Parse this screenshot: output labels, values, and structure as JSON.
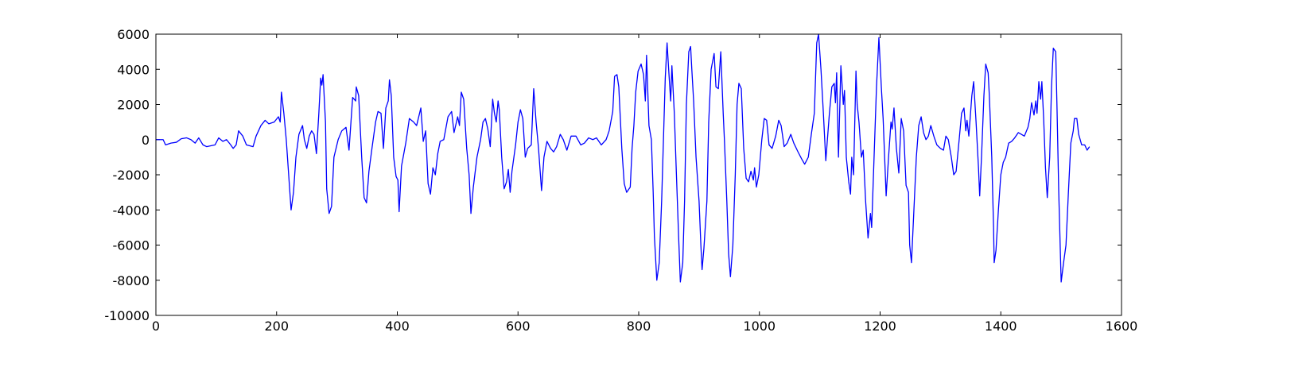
{
  "chart_data": {
    "type": "line",
    "color": "#0000ff",
    "xlim": [
      0,
      1600
    ],
    "xticks": [
      0,
      200,
      400,
      600,
      800,
      1000,
      1200,
      1400,
      1600
    ],
    "ylim": [
      -10000,
      6000
    ],
    "yticks": [
      -10000,
      -8000,
      -6000,
      -4000,
      -2000,
      0,
      2000,
      4000,
      6000
    ],
    "x": [
      0,
      12,
      16,
      25,
      34,
      42,
      51,
      58,
      65,
      71,
      78,
      84,
      98,
      104,
      111,
      117,
      124,
      128,
      133,
      137,
      144,
      150,
      161,
      166,
      174,
      181,
      187,
      196,
      203,
      206,
      208,
      212,
      216,
      220,
      224,
      228,
      232,
      237,
      243,
      246,
      250,
      254,
      258,
      262,
      266,
      270,
      273,
      275,
      277,
      281,
      283,
      287,
      291,
      295,
      302,
      308,
      315,
      320,
      326,
      331,
      332,
      336,
      341,
      345,
      349,
      353,
      358,
      364,
      368,
      373,
      377,
      381,
      385,
      387,
      390,
      394,
      398,
      401,
      403,
      407,
      414,
      420,
      427,
      432,
      439,
      443,
      447,
      451,
      455,
      459,
      463,
      467,
      471,
      477,
      484,
      488,
      490,
      494,
      500,
      503,
      506,
      510,
      515,
      519,
      522,
      526,
      532,
      538,
      542,
      546,
      550,
      554,
      558,
      561,
      564,
      567,
      569,
      573,
      577,
      581,
      584,
      587,
      590,
      596,
      600,
      604,
      608,
      612,
      616,
      622,
      626,
      630,
      634,
      639,
      643,
      648,
      654,
      659,
      664,
      670,
      675,
      681,
      688,
      696,
      704,
      710,
      717,
      724,
      730,
      738,
      746,
      751,
      757,
      760,
      764,
      767,
      772,
      776,
      780,
      786,
      789,
      792,
      795,
      799,
      804,
      808,
      811,
      813,
      817,
      821,
      824,
      826,
      830,
      834,
      838,
      841,
      844,
      847,
      850,
      853,
      855,
      859,
      862,
      866,
      869,
      873,
      876,
      879,
      883,
      886,
      888,
      891,
      895,
      900,
      903,
      905,
      908,
      913,
      916,
      920,
      925,
      928,
      932,
      936,
      940,
      942,
      946,
      949,
      952,
      956,
      960,
      963,
      966,
      970,
      974,
      978,
      982,
      986,
      990,
      992,
      995,
      999,
      1004,
      1008,
      1012,
      1016,
      1021,
      1027,
      1032,
      1036,
      1041,
      1046,
      1052,
      1057,
      1064,
      1070,
      1075,
      1081,
      1086,
      1091,
      1095,
      1098,
      1102,
      1106,
      1110,
      1116,
      1120,
      1124,
      1126,
      1128,
      1131,
      1135,
      1139,
      1141,
      1144,
      1148,
      1151,
      1153,
      1156,
      1160,
      1162,
      1165,
      1169,
      1172,
      1176,
      1180,
      1184,
      1186,
      1190,
      1194,
      1198,
      1202,
      1205,
      1210,
      1214,
      1218,
      1220,
      1223,
      1227,
      1231,
      1235,
      1239,
      1243,
      1247,
      1249,
      1252,
      1256,
      1260,
      1264,
      1268,
      1272,
      1276,
      1280,
      1284,
      1289,
      1294,
      1300,
      1305,
      1309,
      1313,
      1318,
      1322,
      1326,
      1331,
      1335,
      1339,
      1342,
      1344,
      1347,
      1352,
      1355,
      1359,
      1363,
      1365,
      1368,
      1372,
      1375,
      1379,
      1381,
      1385,
      1388,
      1389,
      1392,
      1396,
      1400,
      1404,
      1408,
      1413,
      1418,
      1423,
      1429,
      1434,
      1439,
      1445,
      1448,
      1451,
      1455,
      1458,
      1460,
      1463,
      1466,
      1468,
      1471,
      1474,
      1477,
      1481,
      1484,
      1487,
      1491,
      1493,
      1496,
      1500,
      1504,
      1508,
      1512,
      1516,
      1520,
      1522,
      1526,
      1529,
      1534,
      1539,
      1543,
      1547
    ],
    "values": [
      0,
      0,
      -300,
      -200,
      -150,
      50,
      100,
      0,
      -200,
      100,
      -300,
      -400,
      -300,
      100,
      -100,
      0,
      -300,
      -500,
      -300,
      500,
      200,
      -300,
      -400,
      200,
      800,
      1100,
      900,
      1000,
      1300,
      1000,
      2700,
      1500,
      0,
      -2000,
      -4000,
      -3000,
      -1000,
      300,
      800,
      0,
      -500,
      200,
      500,
      300,
      -800,
      1500,
      3500,
      3100,
      3700,
      1000,
      -2800,
      -4200,
      -3800,
      -1000,
      0,
      500,
      700,
      -600,
      2400,
      2200,
      3000,
      2500,
      -1000,
      -3300,
      -3600,
      -1800,
      -500,
      1000,
      1600,
      1500,
      -500,
      1800,
      2200,
      3400,
      2500,
      -1000,
      -2100,
      -2300,
      -4100,
      -1500,
      -200,
      1200,
      1000,
      800,
      1800,
      -100,
      500,
      -2500,
      -3100,
      -1600,
      -2000,
      -800,
      -100,
      0,
      1300,
      1500,
      1600,
      400,
      1300,
      800,
      2700,
      2300,
      -500,
      -2000,
      -4200,
      -2700,
      -1000,
      0,
      1000,
      1200,
      600,
      -400,
      2300,
      1500,
      1000,
      2200,
      1700,
      -1000,
      -2800,
      -2400,
      -1700,
      -3000,
      -1800,
      -300,
      1000,
      1700,
      1200,
      -1000,
      -500,
      -300,
      2900,
      1000,
      -500,
      -2900,
      -1000,
      -100,
      -500,
      -700,
      -400,
      300,
      0,
      -600,
      200,
      200,
      -300,
      -200,
      100,
      0,
      100,
      -300,
      0,
      500,
      1600,
      3600,
      3700,
      3000,
      -500,
      -2500,
      -3000,
      -2700,
      -500,
      800,
      2700,
      3900,
      4300,
      3700,
      2200,
      4800,
      800,
      0,
      -3000,
      -5500,
      -8000,
      -7000,
      -3500,
      0,
      3500,
      5500,
      3800,
      2200,
      4200,
      1500,
      -1500,
      -5400,
      -8100,
      -7000,
      -3500,
      2000,
      5000,
      5300,
      4000,
      2200,
      -1000,
      -3500,
      -6000,
      -7400,
      -6200,
      -3500,
      1000,
      4000,
      4900,
      3000,
      2900,
      5000,
      1500,
      0,
      -3500,
      -6500,
      -7800,
      -6000,
      -2000,
      2000,
      3200,
      2900,
      -500,
      -2200,
      -2400,
      -1800,
      -2300,
      -1600,
      -2700,
      -2000,
      0,
      1200,
      1100,
      -300,
      -500,
      200,
      1100,
      800,
      -400,
      -200,
      300,
      -200,
      -700,
      -1100,
      -1400,
      -1000,
      300,
      1500,
      5500,
      6000,
      4000,
      1500,
      -1200,
      1500,
      3000,
      3200,
      2100,
      3800,
      -1000,
      4200,
      2000,
      2800,
      -1000,
      -2400,
      -3100,
      -1000,
      -2000,
      3900,
      2000,
      1000,
      -1000,
      -600,
      -3500,
      -5600,
      -4200,
      -5000,
      -1000,
      3000,
      5800,
      3000,
      1200,
      -3200,
      -1000,
      1000,
      600,
      1800,
      -500,
      -1900,
      1200,
      500,
      -2600,
      -3000,
      -6000,
      -7000,
      -4000,
      -1000,
      800,
      1300,
      400,
      0,
      200,
      800,
      200,
      -300,
      -500,
      -600,
      200,
      0,
      -1000,
      -2000,
      -1800,
      0,
      1500,
      1800,
      500,
      1100,
      200,
      2500,
      3300,
      1000,
      -1600,
      -3200,
      -1000,
      2500,
      4300,
      3800,
      2500,
      -1000,
      -5000,
      -7000,
      -6300,
      -4000,
      -2000,
      -1300,
      -1000,
      -200,
      -100,
      100,
      400,
      300,
      200,
      700,
      1200,
      2100,
      1400,
      2200,
      1500,
      3300,
      2300,
      3300,
      1200,
      -1600,
      -3300,
      -1000,
      3000,
      5200,
      5000,
      2000,
      -3000,
      -8100,
      -7000,
      -6000,
      -3000,
      -200,
      500,
      1200,
      1200,
      300,
      -300,
      -300,
      -600,
      -400
    ]
  }
}
